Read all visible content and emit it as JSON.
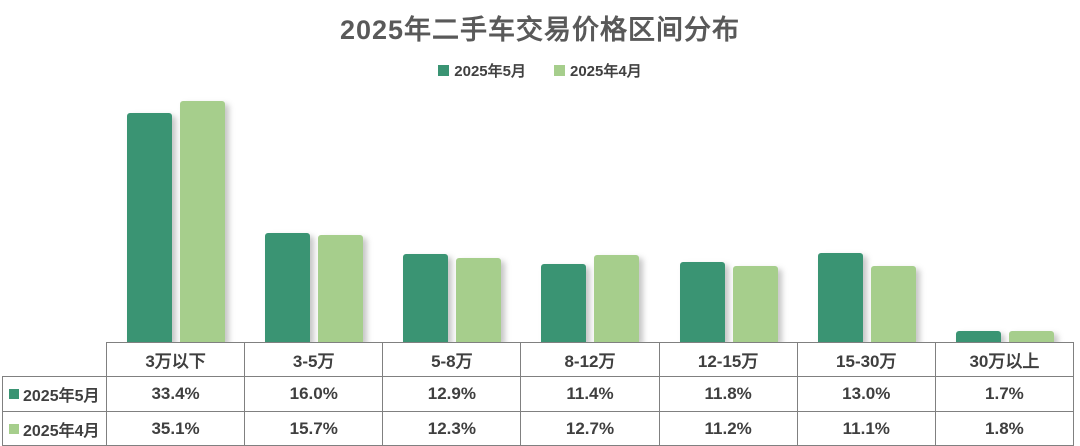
{
  "title": "2025年二手车交易价格区间分布",
  "colors": {
    "series_may": "#3A9473",
    "series_april": "#A6CE8C",
    "title_text": "#595959",
    "table_text": "#3F3F3F",
    "table_border": "#808080",
    "background": "#FFFFFF"
  },
  "legend": {
    "position": "top",
    "items": [
      {
        "label": "2025年5月",
        "color": "#3A9473"
      },
      {
        "label": "2025年4月",
        "color": "#A6CE8C"
      }
    ]
  },
  "chart_data": {
    "type": "bar",
    "title": "2025年二手车交易价格区间分布",
    "categories": [
      "3万以下",
      "3-5万",
      "5-8万",
      "8-12万",
      "12-15万",
      "15-30万",
      "30万以上"
    ],
    "series": [
      {
        "name": "2025年5月",
        "color": "#3A9473",
        "values": [
          33.4,
          16.0,
          12.9,
          11.4,
          11.8,
          13.0,
          1.7
        ]
      },
      {
        "name": "2025年4月",
        "color": "#A6CE8C",
        "values": [
          35.1,
          15.7,
          12.3,
          12.7,
          11.2,
          11.1,
          1.8
        ]
      }
    ],
    "value_suffix": "%",
    "value_decimals": 1,
    "xlabel": "",
    "ylabel": "",
    "ylim": [
      0,
      40
    ],
    "grid": false,
    "legend_position": "top",
    "data_table_shown": true
  }
}
